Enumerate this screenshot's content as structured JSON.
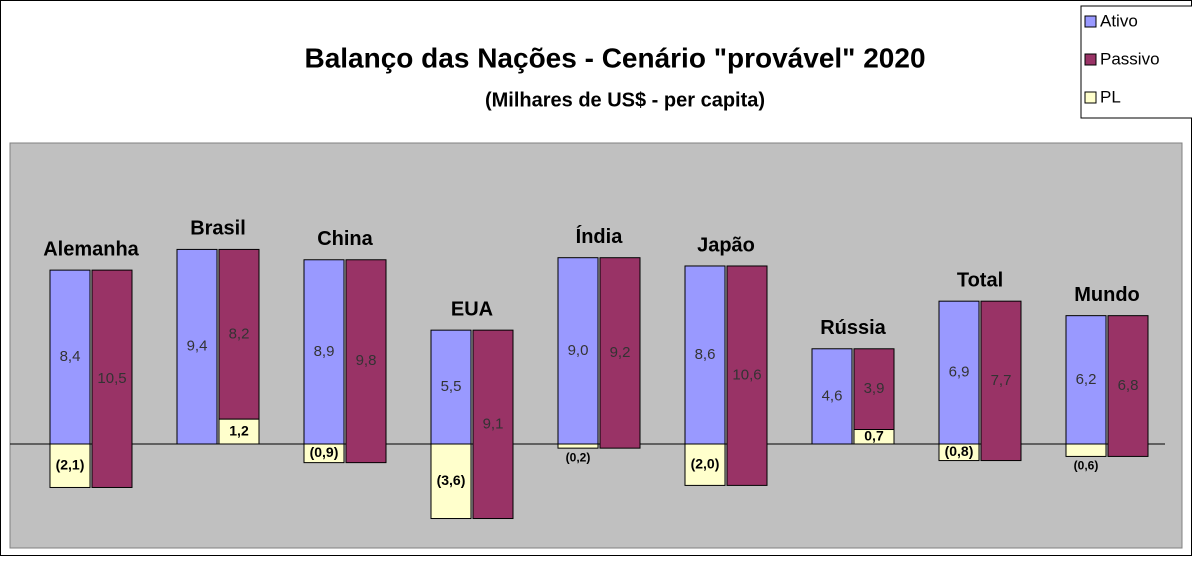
{
  "chart_data": {
    "type": "balance-bar",
    "title": "Balanço das Nações - Cenário \"provável\" 2020",
    "subtitle": "(Milhares de US$ - per capita)",
    "categories": [
      "Alemanha",
      "Brasil",
      "China",
      "EUA",
      "Índia",
      "Japão",
      "Rússia",
      "Total",
      "Mundo"
    ],
    "series": [
      {
        "name": "Ativo",
        "color": "#9999ff",
        "values": [
          8.4,
          9.4,
          8.9,
          5.5,
          9.0,
          8.6,
          4.6,
          6.9,
          6.2
        ],
        "value_labels": [
          "8,4",
          "9,4",
          "8,9",
          "5,5",
          "9,0",
          "8,6",
          "4,6",
          "6,9",
          "6,2"
        ]
      },
      {
        "name": "Passivo",
        "color": "#993366",
        "values": [
          10.5,
          8.2,
          9.8,
          9.1,
          9.2,
          10.6,
          3.9,
          7.7,
          6.8
        ],
        "value_labels": [
          "10,5",
          "8,2",
          "9,8",
          "9,1",
          "9,2",
          "10,6",
          "3,9",
          "7,7",
          "6,8"
        ]
      },
      {
        "name": "PL",
        "color": "#ffffcc",
        "values": [
          -2.1,
          1.2,
          -0.9,
          -3.6,
          -0.2,
          -2.0,
          0.7,
          -0.8,
          -0.6
        ],
        "value_labels": [
          "(2,1)",
          "1,2",
          "(0,9)",
          "(3,6)",
          "(0,2)",
          "(2,0)",
          "0,7",
          "(0,8)",
          "(0,6)"
        ]
      }
    ]
  }
}
